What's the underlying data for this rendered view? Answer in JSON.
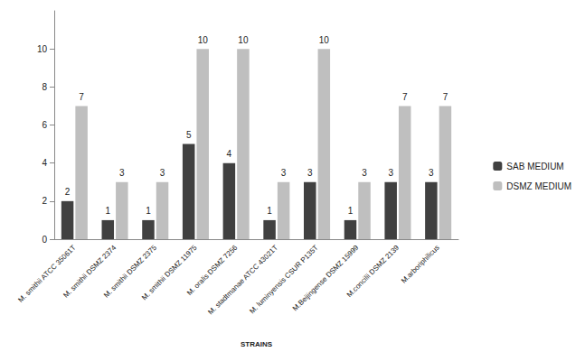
{
  "chart_data": {
    "type": "bar",
    "x_label": "STRAINS",
    "categories": [
      "M. smithii ATCC 35061T",
      "M. smithii DSMZ 2374",
      "M. smithii DSMZ 2375",
      "M. smithii DSMZ 11975",
      "M. oralis DSMZ 7256",
      "M. stadtmanae ATCC 43021T",
      "M. luminyensis CSUR P135T",
      "M.Beijingense DSMZ 15999",
      "M.concilii DSMZ 2139",
      "M.arboriphilicus"
    ],
    "series": [
      {
        "name": "SAB MEDIUM",
        "color": "#404040",
        "values": [
          2,
          1,
          1,
          5,
          4,
          1,
          3,
          1,
          3,
          3
        ]
      },
      {
        "name": "DSMZ MEDIUM",
        "color": "#bfbfbf",
        "values": [
          7,
          3,
          3,
          10,
          10,
          3,
          10,
          3,
          7,
          7
        ]
      }
    ],
    "ylim": [
      0,
      12
    ],
    "yticks": [
      0,
      2,
      4,
      6,
      8,
      10
    ],
    "grid": false,
    "legend": "right",
    "data_labels": true
  }
}
